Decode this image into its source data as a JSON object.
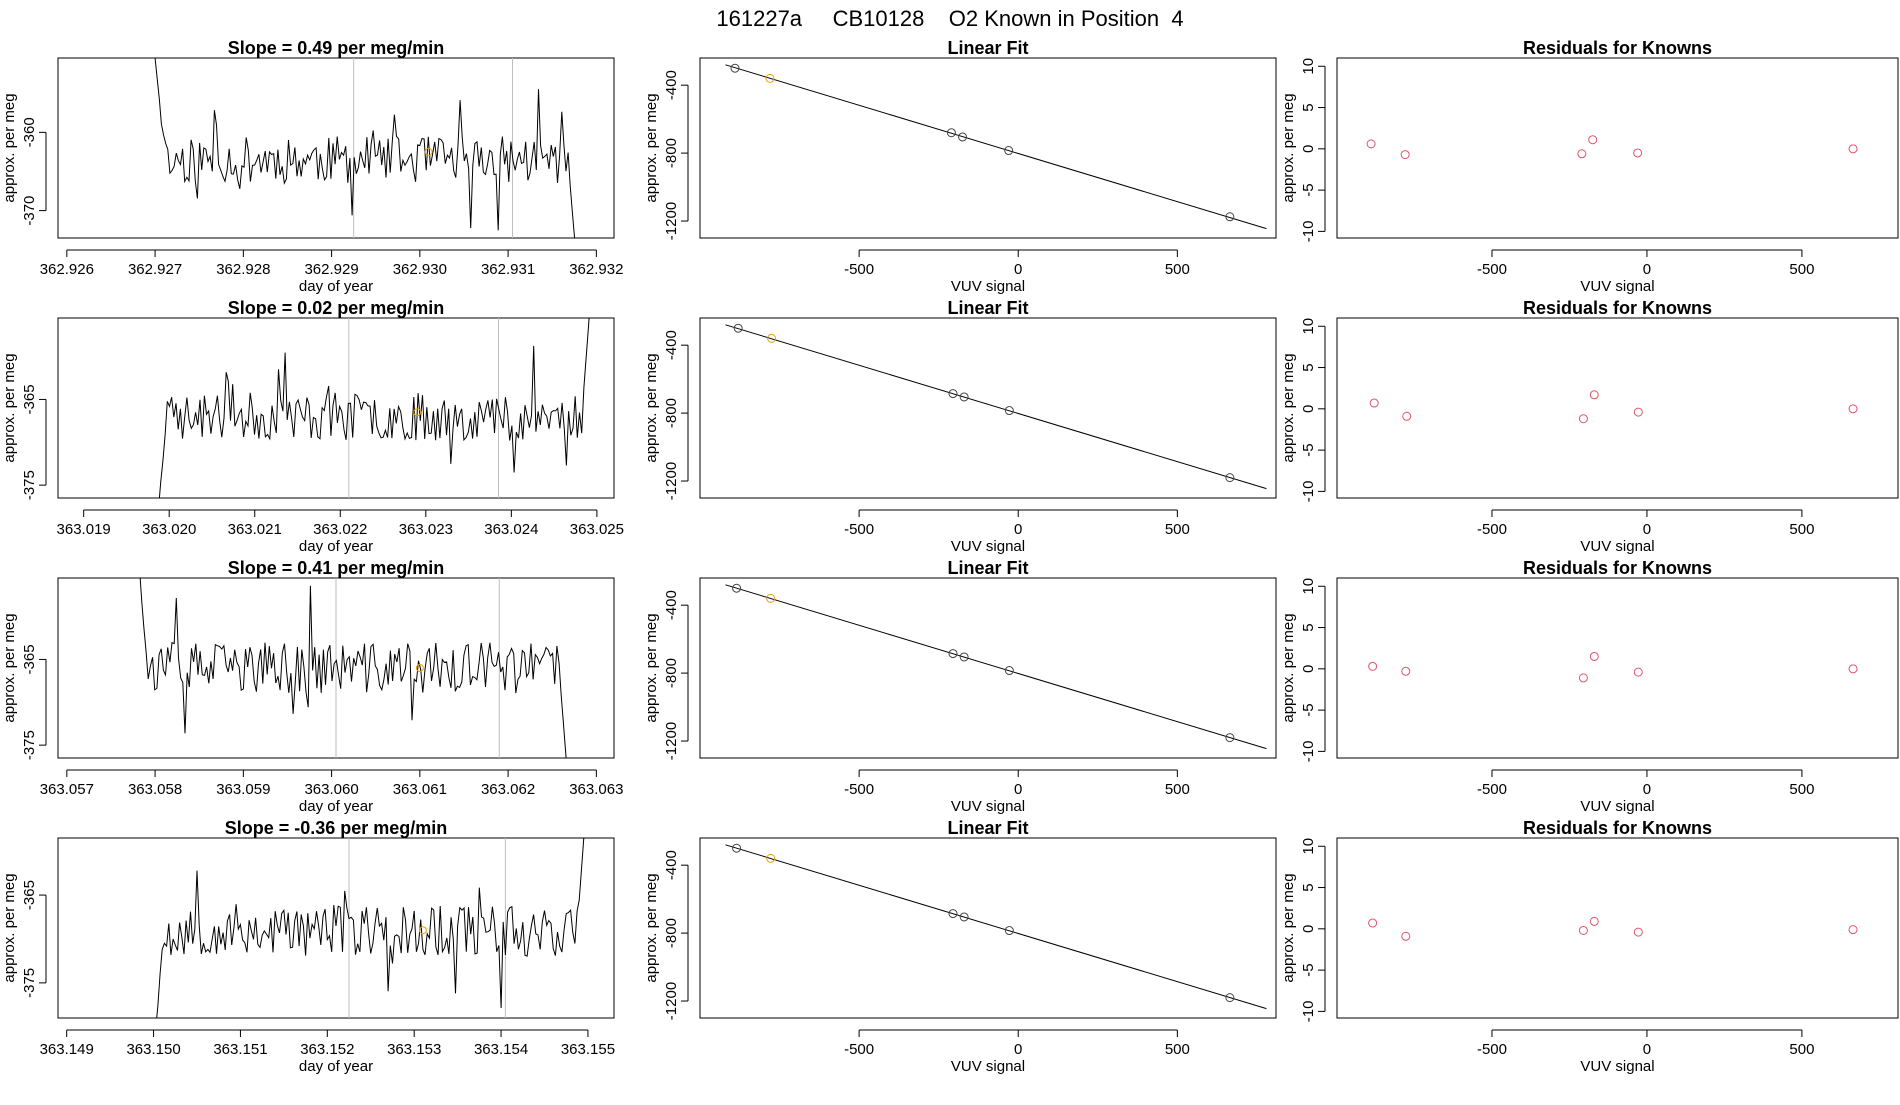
{
  "figure": {
    "title": "161227a     CB10128    O2 Known in Position  4"
  },
  "colors": {
    "trace": "#000000",
    "marker_orange": "#e69f00",
    "marker_red": "#df536b",
    "marker_dark": "#444444",
    "vline": "#bebebe"
  },
  "chart_data": [
    {
      "type": "line",
      "row": 1,
      "col": 1,
      "title": "Slope =  0.49  per meg/min",
      "xlabel": "day of year",
      "ylabel": "approx. per meg",
      "xlim": [
        362.9259,
        362.9322
      ],
      "ylim": [
        -373.5,
        -350.5
      ],
      "xticks": [
        362.926,
        362.927,
        362.928,
        362.929,
        362.93,
        362.931,
        362.932
      ],
      "xtick_labels": [
        "362.926",
        "362.927",
        "362.928",
        "362.929",
        "362.930",
        "362.931",
        "362.932"
      ],
      "yticks": [
        -360,
        -370
      ],
      "ytick_labels": [
        "-360",
        "-370"
      ],
      "vlines": [
        362.92925,
        362.93105
      ],
      "trace": {
        "x_start": 362.927,
        "x_end": 362.9318,
        "seed": 11,
        "mean": -363.5,
        "amp": 3.0,
        "start": -350.0,
        "end": -380.0
      },
      "marker": {
        "x": 362.9301,
        "y": -362.5
      }
    },
    {
      "type": "scatter",
      "row": 1,
      "col": 2,
      "title": "Linear Fit",
      "xlabel": "VUV signal",
      "ylabel": "approx. per meg",
      "xlim": [
        -1000,
        810
      ],
      "ylim": [
        -1300,
        -240
      ],
      "xticks": [
        -500,
        0,
        500
      ],
      "xtick_labels": [
        "-500",
        "0",
        "500"
      ],
      "yticks": [
        -400,
        -800,
        -1200
      ],
      "ytick_labels": [
        "-400",
        "-800",
        "-1200"
      ],
      "fit_line": {
        "x": [
          -920,
          780
        ],
        "y": [
          -280,
          -1245
        ]
      },
      "points": [
        {
          "x": -890,
          "y": -300,
          "color": "dark"
        },
        {
          "x": -780,
          "y": -360,
          "color": "orange"
        },
        {
          "x": -210,
          "y": -680,
          "color": "dark"
        },
        {
          "x": -175,
          "y": -705,
          "color": "dark"
        },
        {
          "x": -30,
          "y": -785,
          "color": "dark"
        },
        {
          "x": 665,
          "y": -1175,
          "color": "dark"
        }
      ]
    },
    {
      "type": "scatter",
      "row": 1,
      "col": 3,
      "title": "Residuals for Knowns",
      "xlabel": "VUV signal",
      "ylabel": "approx. per meg",
      "xlim": [
        -1000,
        810
      ],
      "ylim": [
        -10.8,
        11
      ],
      "xticks": [
        -500,
        0,
        500
      ],
      "xtick_labels": [
        "-500",
        "0",
        "500"
      ],
      "yticks": [
        10,
        5,
        0,
        -5,
        -10
      ],
      "ytick_labels": [
        "10",
        "5",
        "0",
        "-5",
        "-10"
      ],
      "points": [
        {
          "x": -890,
          "y": 0.6,
          "color": "red"
        },
        {
          "x": -780,
          "y": -0.7,
          "color": "red"
        },
        {
          "x": -210,
          "y": -0.6,
          "color": "red"
        },
        {
          "x": -175,
          "y": 1.1,
          "color": "red"
        },
        {
          "x": -30,
          "y": -0.5,
          "color": "red"
        },
        {
          "x": 665,
          "y": 0.0,
          "color": "red"
        }
      ]
    },
    {
      "type": "line",
      "row": 2,
      "col": 1,
      "title": "Slope =  0.02  per meg/min",
      "xlabel": "day of year",
      "ylabel": "approx. per meg",
      "xlim": [
        363.0187,
        363.0252
      ],
      "ylim": [
        -376.5,
        -355.5
      ],
      "xticks": [
        363.019,
        363.02,
        363.021,
        363.022,
        363.023,
        363.024,
        363.025
      ],
      "xtick_labels": [
        "363.019",
        "363.020",
        "363.021",
        "363.022",
        "363.023",
        "363.024",
        "363.025"
      ],
      "yticks": [
        -365,
        -375
      ],
      "ytick_labels": [
        "-365",
        "-375"
      ],
      "vlines": [
        363.0221,
        363.02385
      ],
      "trace": {
        "x_start": 363.01985,
        "x_end": 363.02495,
        "seed": 23,
        "mean": -367.0,
        "amp": 2.8,
        "start": -380.0,
        "end": -350.0
      },
      "marker": {
        "x": 363.0229,
        "y": -366.5
      }
    },
    {
      "type": "scatter",
      "row": 2,
      "col": 2,
      "title": "Linear Fit",
      "xlabel": "VUV signal",
      "ylabel": "approx. per meg",
      "xlim": [
        -1000,
        810
      ],
      "ylim": [
        -1300,
        -240
      ],
      "xticks": [
        -500,
        0,
        500
      ],
      "xtick_labels": [
        "-500",
        "0",
        "500"
      ],
      "yticks": [
        -400,
        -800,
        -1200
      ],
      "ytick_labels": [
        "-400",
        "-800",
        "-1200"
      ],
      "fit_line": {
        "x": [
          -920,
          780
        ],
        "y": [
          -280,
          -1245
        ]
      },
      "points": [
        {
          "x": -880,
          "y": -300,
          "color": "dark"
        },
        {
          "x": -775,
          "y": -360,
          "color": "orange"
        },
        {
          "x": -205,
          "y": -685,
          "color": "dark"
        },
        {
          "x": -170,
          "y": -705,
          "color": "dark"
        },
        {
          "x": -28,
          "y": -785,
          "color": "dark"
        },
        {
          "x": 665,
          "y": -1180,
          "color": "dark"
        }
      ]
    },
    {
      "type": "scatter",
      "row": 2,
      "col": 3,
      "title": "Residuals for Knowns",
      "xlabel": "VUV signal",
      "ylabel": "approx. per meg",
      "xlim": [
        -1000,
        810
      ],
      "ylim": [
        -10.8,
        11
      ],
      "xticks": [
        -500,
        0,
        500
      ],
      "xtick_labels": [
        "-500",
        "0",
        "500"
      ],
      "yticks": [
        10,
        5,
        0,
        -5,
        -10
      ],
      "ytick_labels": [
        "10",
        "5",
        "0",
        "-5",
        "-10"
      ],
      "points": [
        {
          "x": -880,
          "y": 0.7,
          "color": "red"
        },
        {
          "x": -775,
          "y": -0.9,
          "color": "red"
        },
        {
          "x": -205,
          "y": -1.2,
          "color": "red"
        },
        {
          "x": -170,
          "y": 1.7,
          "color": "red"
        },
        {
          "x": -28,
          "y": -0.4,
          "color": "red"
        },
        {
          "x": 665,
          "y": 0.0,
          "color": "red"
        }
      ]
    },
    {
      "type": "line",
      "row": 3,
      "col": 1,
      "title": "Slope =  0.41  per meg/min",
      "xlabel": "day of year",
      "ylabel": "approx. per meg",
      "xlim": [
        363.0569,
        363.0632
      ],
      "ylim": [
        -376.5,
        -355.5
      ],
      "xticks": [
        363.057,
        363.058,
        363.059,
        363.06,
        363.061,
        363.062,
        363.063
      ],
      "xtick_labels": [
        "363.057",
        "363.058",
        "363.059",
        "363.060",
        "363.061",
        "363.062",
        "363.063"
      ],
      "yticks": [
        -365,
        -375
      ],
      "ytick_labels": [
        "-365",
        "-375"
      ],
      "vlines": [
        363.06005,
        363.0619
      ],
      "trace": {
        "x_start": 363.0578,
        "x_end": 363.0627,
        "seed": 37,
        "mean": -366.0,
        "amp": 3.0,
        "start": -352.0,
        "end": -382.0
      },
      "marker": {
        "x": 363.061,
        "y": -366.0
      }
    },
    {
      "type": "scatter",
      "row": 3,
      "col": 2,
      "title": "Linear Fit",
      "xlabel": "VUV signal",
      "ylabel": "approx. per meg",
      "xlim": [
        -1000,
        810
      ],
      "ylim": [
        -1300,
        -240
      ],
      "xticks": [
        -500,
        0,
        500
      ],
      "xtick_labels": [
        "-500",
        "0",
        "500"
      ],
      "yticks": [
        -400,
        -800,
        -1200
      ],
      "ytick_labels": [
        "-400",
        "-800",
        "-1200"
      ],
      "fit_line": {
        "x": [
          -920,
          780
        ],
        "y": [
          -280,
          -1245
        ]
      },
      "points": [
        {
          "x": -885,
          "y": -300,
          "color": "dark"
        },
        {
          "x": -778,
          "y": -360,
          "color": "orange"
        },
        {
          "x": -205,
          "y": -685,
          "color": "dark"
        },
        {
          "x": -170,
          "y": -705,
          "color": "dark"
        },
        {
          "x": -28,
          "y": -785,
          "color": "dark"
        },
        {
          "x": 665,
          "y": -1180,
          "color": "dark"
        }
      ]
    },
    {
      "type": "scatter",
      "row": 3,
      "col": 3,
      "title": "Residuals for Knowns",
      "xlabel": "VUV signal",
      "ylabel": "approx. per meg",
      "xlim": [
        -1000,
        810
      ],
      "ylim": [
        -10.8,
        11
      ],
      "xticks": [
        -500,
        0,
        500
      ],
      "xtick_labels": [
        "-500",
        "0",
        "500"
      ],
      "yticks": [
        10,
        5,
        0,
        -5,
        -10
      ],
      "ytick_labels": [
        "10",
        "5",
        "0",
        "-5",
        "-10"
      ],
      "points": [
        {
          "x": -885,
          "y": 0.3,
          "color": "red"
        },
        {
          "x": -778,
          "y": -0.3,
          "color": "red"
        },
        {
          "x": -205,
          "y": -1.1,
          "color": "red"
        },
        {
          "x": -170,
          "y": 1.5,
          "color": "red"
        },
        {
          "x": -28,
          "y": -0.4,
          "color": "red"
        },
        {
          "x": 665,
          "y": 0.0,
          "color": "red"
        }
      ]
    },
    {
      "type": "line",
      "row": 4,
      "col": 1,
      "title": "Slope =  -0.36  per meg/min",
      "xlabel": "day of year",
      "ylabel": "approx. per meg",
      "xlim": [
        363.1489,
        363.1553
      ],
      "ylim": [
        -379,
        -358.5
      ],
      "xticks": [
        363.149,
        363.15,
        363.151,
        363.152,
        363.153,
        363.154,
        363.155
      ],
      "xtick_labels": [
        "363.149",
        "363.150",
        "363.151",
        "363.152",
        "363.153",
        "363.154",
        "363.155"
      ],
      "yticks": [
        -365,
        -375
      ],
      "ytick_labels": [
        "-365",
        "-375"
      ],
      "vlines": [
        363.15225,
        363.15405
      ],
      "trace": {
        "x_start": 363.15,
        "x_end": 363.155,
        "seed": 53,
        "mean": -369.0,
        "amp": 3.0,
        "start": -382.0,
        "end": -352.0
      },
      "marker": {
        "x": 363.1531,
        "y": -369.0
      }
    },
    {
      "type": "scatter",
      "row": 4,
      "col": 2,
      "title": "Linear Fit",
      "xlabel": "VUV signal",
      "ylabel": "approx. per meg",
      "xlim": [
        -1000,
        810
      ],
      "ylim": [
        -1300,
        -240
      ],
      "xticks": [
        -500,
        0,
        500
      ],
      "xtick_labels": [
        "-500",
        "0",
        "500"
      ],
      "yticks": [
        -400,
        -800,
        -1200
      ],
      "ytick_labels": [
        "-400",
        "-800",
        "-1200"
      ],
      "fit_line": {
        "x": [
          -920,
          780
        ],
        "y": [
          -280,
          -1245
        ]
      },
      "points": [
        {
          "x": -885,
          "y": -300,
          "color": "dark"
        },
        {
          "x": -778,
          "y": -360,
          "color": "orange"
        },
        {
          "x": -205,
          "y": -685,
          "color": "dark"
        },
        {
          "x": -170,
          "y": -705,
          "color": "dark"
        },
        {
          "x": -28,
          "y": -785,
          "color": "dark"
        },
        {
          "x": 665,
          "y": -1180,
          "color": "dark"
        }
      ]
    },
    {
      "type": "scatter",
      "row": 4,
      "col": 3,
      "title": "Residuals for Knowns",
      "xlabel": "VUV signal",
      "ylabel": "approx. per meg",
      "xlim": [
        -1000,
        810
      ],
      "ylim": [
        -10.8,
        11
      ],
      "xticks": [
        -500,
        0,
        500
      ],
      "xtick_labels": [
        "-500",
        "0",
        "500"
      ],
      "yticks": [
        10,
        5,
        0,
        -5,
        -10
      ],
      "ytick_labels": [
        "10",
        "5",
        "0",
        "-5",
        "-10"
      ],
      "points": [
        {
          "x": -885,
          "y": 0.7,
          "color": "red"
        },
        {
          "x": -778,
          "y": -0.9,
          "color": "red"
        },
        {
          "x": -205,
          "y": -0.2,
          "color": "red"
        },
        {
          "x": -170,
          "y": 0.9,
          "color": "red"
        },
        {
          "x": -28,
          "y": -0.4,
          "color": "red"
        },
        {
          "x": 665,
          "y": -0.1,
          "color": "red"
        }
      ]
    }
  ]
}
